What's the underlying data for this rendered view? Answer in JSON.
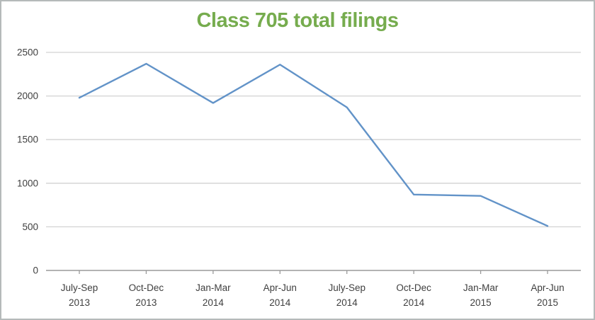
{
  "chart_data": {
    "type": "line",
    "title": "Class 705 total filings",
    "title_color": "#76ac4e",
    "series": [
      {
        "name": "Class 705 total filings",
        "values": [
          1980,
          2370,
          1920,
          2360,
          1870,
          870,
          855,
          510
        ]
      }
    ],
    "categories": [
      "July-Sep 2013",
      "Oct-Dec 2013",
      "Jan-Mar 2014",
      "Apr-Jun 2014",
      "July-Sep 2014",
      "Oct-Dec 2014",
      "Jan-Mar 2015",
      "Apr-Jun 2015"
    ],
    "categories_line1": [
      "July-Sep",
      "Oct-Dec",
      "Jan-Mar",
      "Apr-Jun",
      "July-Sep",
      "Oct-Dec",
      "Jan-Mar",
      "Apr-Jun"
    ],
    "categories_line2": [
      "2013",
      "2013",
      "2014",
      "2014",
      "2014",
      "2014",
      "2015",
      "2015"
    ],
    "xlabel": "",
    "ylabel": "",
    "ylim": [
      0,
      2500
    ],
    "yticks": [
      0,
      500,
      1000,
      1500,
      2000,
      2500
    ],
    "grid": true,
    "legend_position": "none",
    "line_color": "#6293c8",
    "gridline_color": "#d2d2d2",
    "axis_line_color": "#9a9a9a",
    "tick_label_color": "#3f3f3f"
  }
}
